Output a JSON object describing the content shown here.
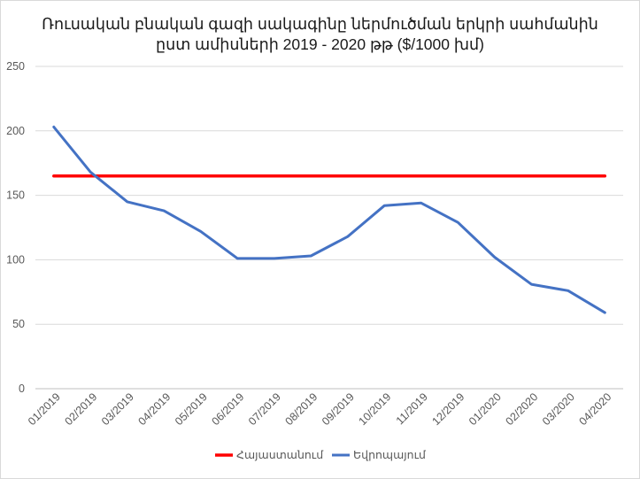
{
  "chart_data": {
    "type": "line",
    "title": "Ռուսական բնական գազի սակագինը ներմուծման երկրի սահմանին",
    "subtitle": "ըստ ամիսների 2019 - 2020 թթ ($/1000 խմ)",
    "xlabel": "",
    "ylabel": "",
    "categories": [
      "01/2019",
      "02/2019",
      "03/2019",
      "04/2019",
      "05/2019",
      "06/2019",
      "07/2019",
      "08/2019",
      "09/2019",
      "10/2019",
      "11/2019",
      "12/2019",
      "01/2020",
      "02/2020",
      "03/2020",
      "04/2020"
    ],
    "yticks": [
      "0",
      "50",
      "100",
      "150",
      "200",
      "250"
    ],
    "ylim": [
      0,
      250
    ],
    "grid": true,
    "legend_position": "bottom",
    "series": [
      {
        "name": "Հայաստանում",
        "color": "#ff0000",
        "values": [
          165,
          165,
          165,
          165,
          165,
          165,
          165,
          165,
          165,
          165,
          165,
          165,
          165,
          165,
          165,
          165
        ]
      },
      {
        "name": "Եվրոպայում",
        "color": "#4472c4",
        "values": [
          203,
          168,
          145,
          138,
          122,
          101,
          101,
          103,
          118,
          142,
          144,
          129,
          102,
          81,
          76,
          59
        ]
      }
    ]
  }
}
